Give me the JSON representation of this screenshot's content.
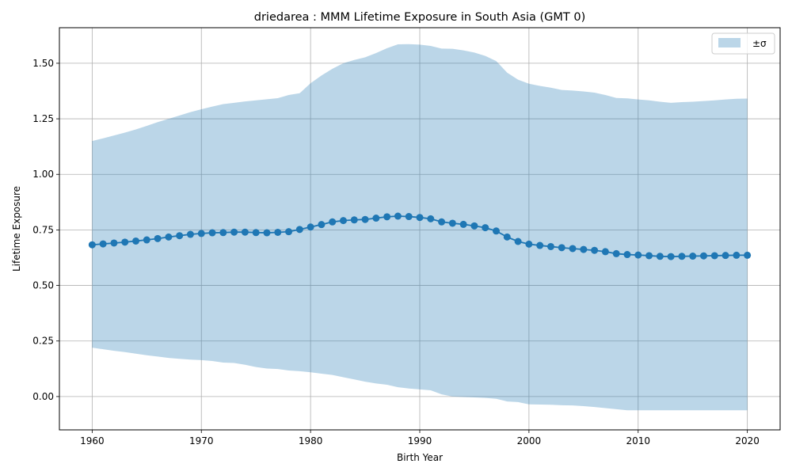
{
  "chart_data": {
    "type": "line",
    "title": "driedarea : MMM Lifetime Exposure in South Asia (GMT 0)",
    "xlabel": "Birth Year",
    "ylabel": "Lifetime Exposure",
    "xlim": [
      1957,
      2023
    ],
    "ylim": [
      -0.15,
      1.66
    ],
    "xticks": [
      1960,
      1970,
      1980,
      1990,
      2000,
      2010,
      2020
    ],
    "xtick_labels": [
      "1960",
      "1970",
      "1980",
      "1990",
      "2000",
      "2010",
      "2020"
    ],
    "yticks": [
      0.0,
      0.25,
      0.5,
      0.75,
      1.0,
      1.25,
      1.5
    ],
    "ytick_labels": [
      "0.00",
      "0.25",
      "0.50",
      "0.75",
      "1.00",
      "1.25",
      "1.50"
    ],
    "grid": true,
    "legend": {
      "placement": "top-right",
      "entries": [
        {
          "label": "±σ",
          "kind": "band"
        }
      ]
    },
    "colors": {
      "line": "#1f77b4",
      "band": "#1f77b4",
      "band_opacity": 0.3,
      "grid": "#b0b0b0"
    },
    "x": [
      1960,
      1961,
      1962,
      1963,
      1964,
      1965,
      1966,
      1967,
      1968,
      1969,
      1970,
      1971,
      1972,
      1973,
      1974,
      1975,
      1976,
      1977,
      1978,
      1979,
      1980,
      1981,
      1982,
      1983,
      1984,
      1985,
      1986,
      1987,
      1988,
      1989,
      1990,
      1991,
      1992,
      1993,
      1994,
      1995,
      1996,
      1997,
      1998,
      1999,
      2000,
      2001,
      2002,
      2003,
      2004,
      2005,
      2006,
      2007,
      2008,
      2009,
      2010,
      2011,
      2012,
      2013,
      2014,
      2015,
      2016,
      2017,
      2018,
      2019,
      2020
    ],
    "series": [
      {
        "kind": "line",
        "values": [
          0.683,
          0.687,
          0.691,
          0.695,
          0.7,
          0.705,
          0.711,
          0.718,
          0.724,
          0.73,
          0.734,
          0.737,
          0.738,
          0.74,
          0.74,
          0.738,
          0.737,
          0.739,
          0.742,
          0.752,
          0.763,
          0.774,
          0.786,
          0.792,
          0.795,
          0.797,
          0.803,
          0.809,
          0.812,
          0.81,
          0.806,
          0.8,
          0.786,
          0.78,
          0.775,
          0.768,
          0.76,
          0.745,
          0.718,
          0.698,
          0.686,
          0.68,
          0.675,
          0.67,
          0.666,
          0.662,
          0.658,
          0.652,
          0.643,
          0.639,
          0.637,
          0.634,
          0.631,
          0.63,
          0.631,
          0.632,
          0.633,
          0.634,
          0.635,
          0.636,
          0.636
        ]
      },
      {
        "kind": "band",
        "name": "±σ",
        "upper": [
          1.15,
          1.162,
          1.175,
          1.188,
          1.202,
          1.218,
          1.235,
          1.25,
          1.265,
          1.28,
          1.293,
          1.305,
          1.316,
          1.322,
          1.328,
          1.333,
          1.338,
          1.343,
          1.357,
          1.365,
          1.41,
          1.445,
          1.475,
          1.5,
          1.515,
          1.527,
          1.546,
          1.568,
          1.585,
          1.586,
          1.584,
          1.578,
          1.566,
          1.565,
          1.558,
          1.548,
          1.533,
          1.51,
          1.458,
          1.426,
          1.408,
          1.398,
          1.39,
          1.38,
          1.377,
          1.373,
          1.368,
          1.357,
          1.344,
          1.342,
          1.337,
          1.333,
          1.327,
          1.322,
          1.325,
          1.327,
          1.33,
          1.333,
          1.337,
          1.34,
          1.341
        ],
        "lower": [
          0.22,
          0.213,
          0.206,
          0.2,
          0.193,
          0.186,
          0.18,
          0.174,
          0.17,
          0.166,
          0.164,
          0.16,
          0.153,
          0.151,
          0.143,
          0.133,
          0.126,
          0.124,
          0.117,
          0.114,
          0.109,
          0.103,
          0.097,
          0.087,
          0.077,
          0.067,
          0.059,
          0.053,
          0.042,
          0.036,
          0.032,
          0.028,
          0.01,
          0.0,
          -0.002,
          -0.004,
          -0.006,
          -0.01,
          -0.022,
          -0.025,
          -0.035,
          -0.036,
          -0.037,
          -0.039,
          -0.04,
          -0.043,
          -0.047,
          -0.052,
          -0.057,
          -0.062,
          -0.062,
          -0.062,
          -0.062,
          -0.062,
          -0.062,
          -0.062,
          -0.062,
          -0.062,
          -0.062,
          -0.062,
          -0.062
        ]
      }
    ]
  }
}
